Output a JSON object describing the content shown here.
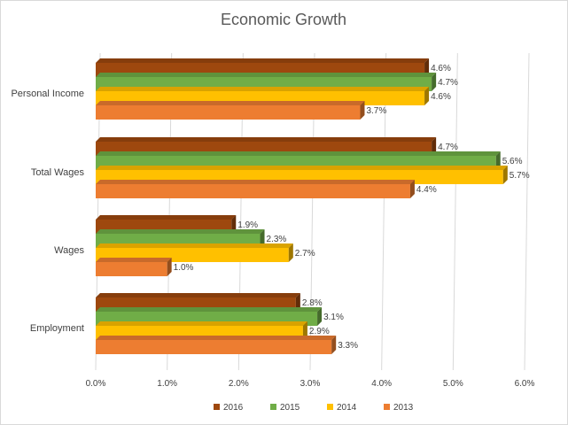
{
  "chart_data": {
    "type": "bar",
    "orientation": "horizontal",
    "style": "3d-clustered",
    "title": "Economic Growth",
    "xlabel": "",
    "ylabel": "",
    "categories": [
      "Personal Income",
      "Total Wages",
      "Wages",
      "Employment"
    ],
    "series": [
      {
        "name": "2016",
        "color": "#9e480e",
        "values": [
          4.6,
          4.7,
          1.9,
          2.8
        ],
        "labels": [
          "4.6%",
          "4.7%",
          "1.9%",
          "2.8%"
        ]
      },
      {
        "name": "2015",
        "color": "#70ad47",
        "values": [
          4.7,
          5.6,
          2.3,
          3.1
        ],
        "labels": [
          "4.7%",
          "5.6%",
          "2.3%",
          "3.1%"
        ]
      },
      {
        "name": "2014",
        "color": "#ffc000",
        "values": [
          4.6,
          5.7,
          2.7,
          2.9
        ],
        "labels": [
          "4.6%",
          "5.7%",
          "2.7%",
          "2.9%"
        ]
      },
      {
        "name": "2013",
        "color": "#ed7d31",
        "values": [
          3.7,
          4.4,
          1.0,
          3.3
        ],
        "labels": [
          "3.7%",
          "4.4%",
          "1.0%",
          "3.3%"
        ]
      }
    ],
    "xlim": [
      0,
      6
    ],
    "x_ticks": [
      0,
      1,
      2,
      3,
      4,
      5,
      6
    ],
    "x_tick_labels": [
      "0.0%",
      "1.0%",
      "2.0%",
      "3.0%",
      "4.0%",
      "5.0%",
      "6.0%"
    ],
    "grid": true,
    "legend_position": "bottom"
  }
}
